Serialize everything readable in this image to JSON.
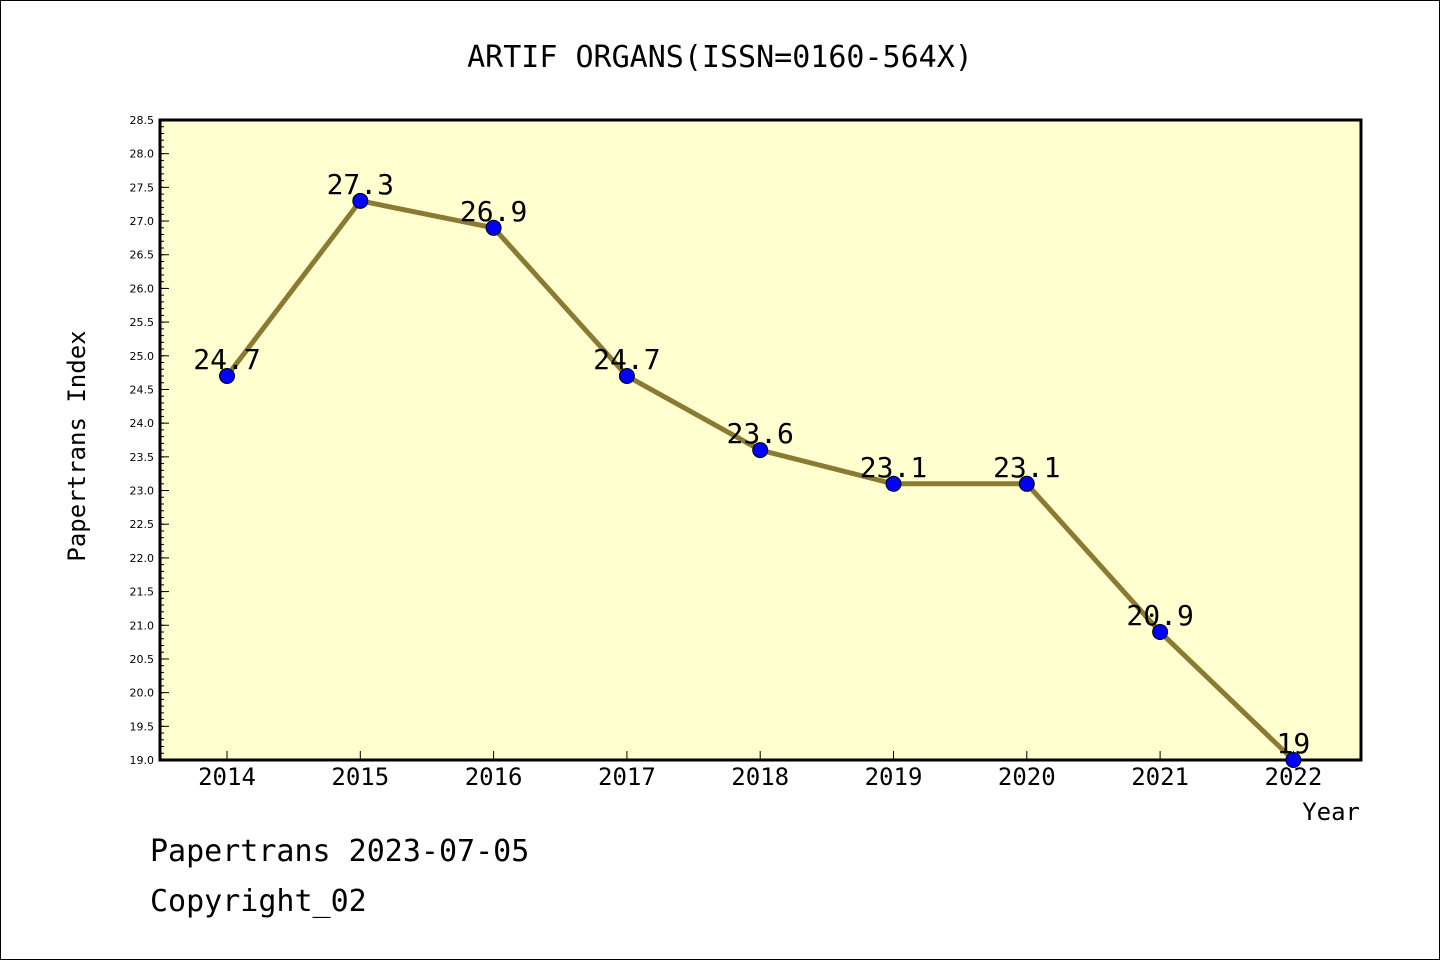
{
  "chart_data": {
    "type": "line",
    "title": "ARTIF ORGANS(ISSN=0160-564X)",
    "xlabel": "Year",
    "ylabel": "Papertrans Index",
    "categories": [
      "2014",
      "2015",
      "2016",
      "2017",
      "2018",
      "2019",
      "2020",
      "2021",
      "2022"
    ],
    "series": [
      {
        "values": [
          24.7,
          27.3,
          26.9,
          24.7,
          23.6,
          23.1,
          23.1,
          20.9,
          19
        ],
        "labels": [
          "24.7",
          "27.3",
          "26.9",
          "24.7",
          "23.6",
          "23.1",
          "23.1",
          "20.9",
          "19"
        ]
      }
    ],
    "ylim": [
      19.0,
      28.5
    ],
    "yticks": [
      "19.0",
      "19.5",
      "20.0",
      "20.5",
      "21.0",
      "21.5",
      "22.0",
      "22.5",
      "23.0",
      "23.5",
      "24.0",
      "24.5",
      "25.0",
      "25.5",
      "26.0",
      "26.5",
      "27.0",
      "27.5",
      "28.0",
      "28.5"
    ],
    "grid": false,
    "colors": {
      "plot_background": "#ffffd0",
      "line": "#8b7a32",
      "marker": "#0000ff"
    }
  },
  "footer": {
    "date_line": "Papertrans 2023-07-05",
    "copyright": "Copyright_02"
  }
}
